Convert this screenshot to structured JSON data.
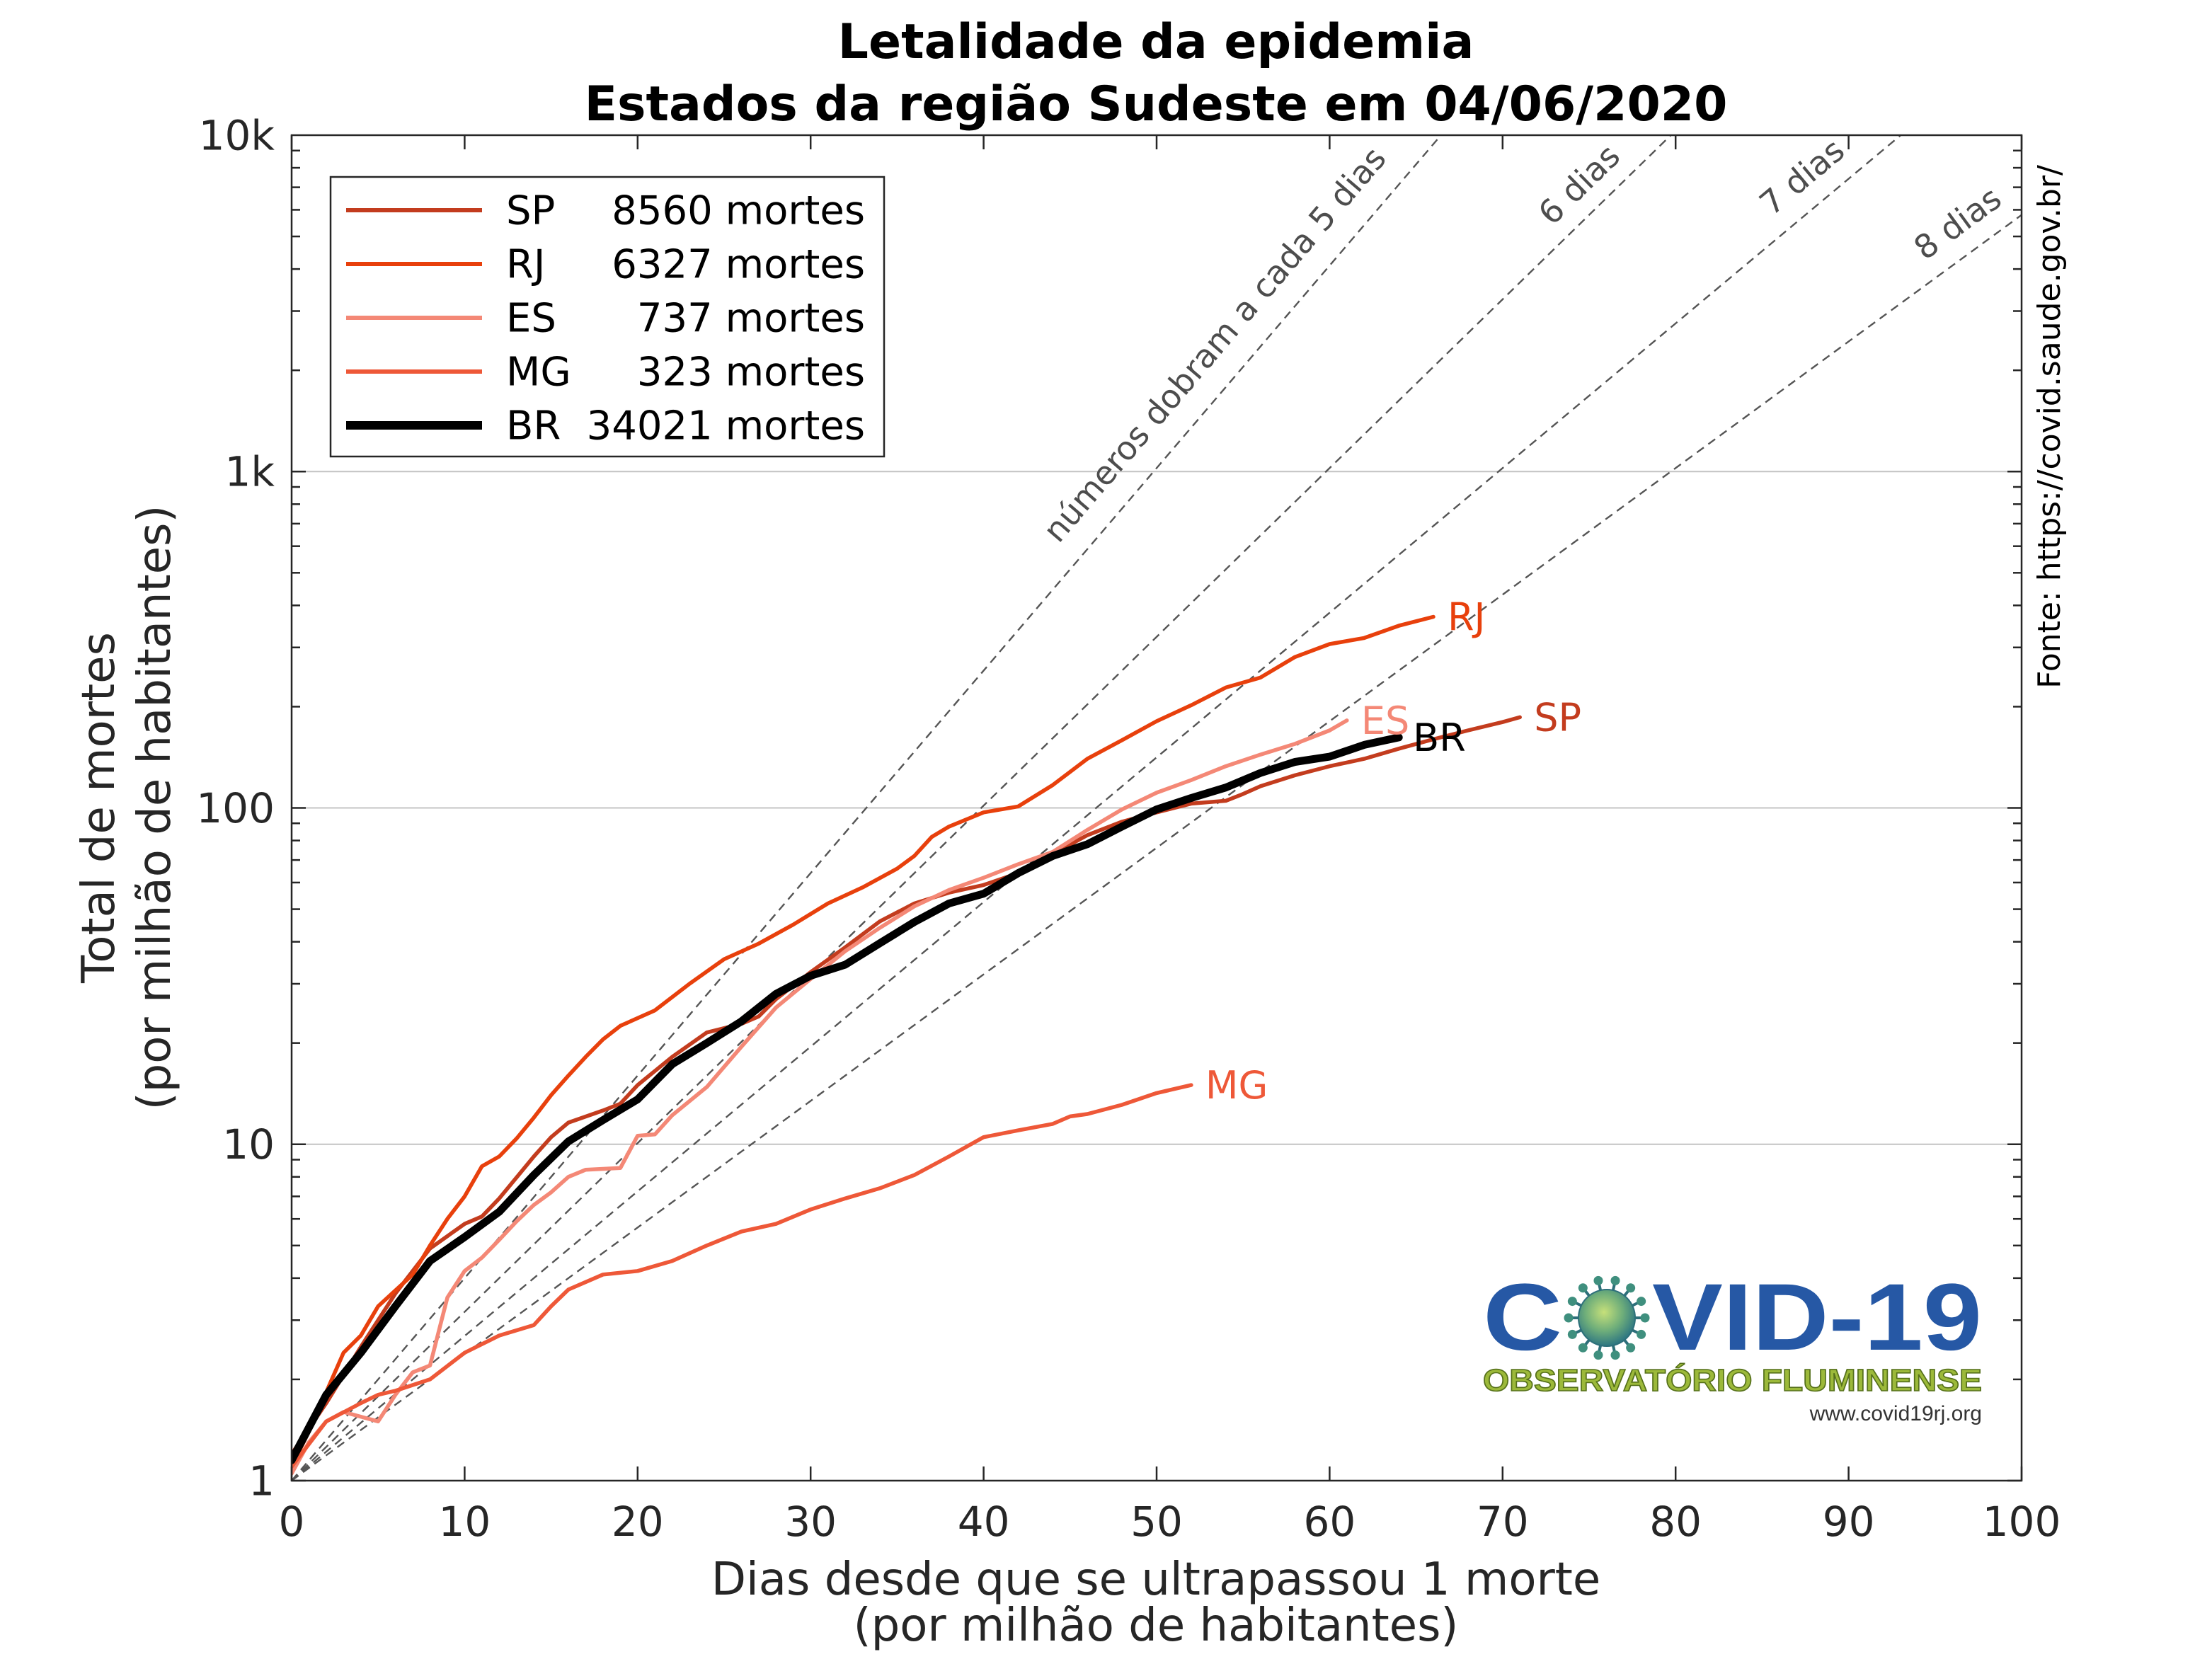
{
  "chart_data": {
    "type": "line",
    "title": "Letalidade da epidemia",
    "subtitle": "Estados da região Sudeste em 04/06/2020",
    "xlabel": "Dias desde que se ultrapassou 1 morte",
    "xlabel_line2": "(por milhão de habitantes)",
    "ylabel": "Total de mortes",
    "ylabel_line2": "(por milhão de habitantes)",
    "xlim": [
      0,
      100
    ],
    "ylim": [
      1,
      10000
    ],
    "yscale": "log",
    "xticks": [
      0,
      10,
      20,
      30,
      40,
      50,
      60,
      70,
      80,
      90,
      100
    ],
    "xtick_labels": [
      "0",
      "10",
      "20",
      "30",
      "40",
      "50",
      "60",
      "70",
      "80",
      "90",
      "100"
    ],
    "yticks": [
      1,
      10,
      100,
      1000,
      10000
    ],
    "ytick_labels": [
      "1",
      "10",
      "100",
      "1k",
      "10k"
    ],
    "grid": "y-major",
    "legend_placement": "top-left",
    "source": "Fonte: https://covid.saude.gov.br/",
    "series": [
      {
        "name": "SP",
        "legend_label": "8560 mortes",
        "color": "#c33c1e",
        "x": [
          0,
          2,
          4,
          6,
          8,
          10,
          11,
          12,
          14,
          15,
          16,
          18,
          19,
          20,
          22,
          24,
          26,
          27,
          28,
          30,
          32,
          34,
          36,
          38,
          40,
          42,
          44,
          46,
          48,
          50,
          52,
          54,
          55,
          56,
          58,
          60,
          62,
          64,
          66,
          68,
          70,
          71
        ],
        "y": [
          1.2,
          1.7,
          2.5,
          3.6,
          4.9,
          5.8,
          6.1,
          6.9,
          9.2,
          10.5,
          11.6,
          12.6,
          13.2,
          15,
          18.2,
          21.5,
          22.8,
          24,
          27,
          32.5,
          38.5,
          46,
          52,
          56,
          59,
          64,
          73,
          83,
          91,
          97,
          103,
          105,
          110,
          116,
          125,
          133,
          140,
          150,
          160,
          170,
          180,
          186
        ]
      },
      {
        "name": "RJ",
        "legend_label": "6327 mortes",
        "color": "#e8400c",
        "x": [
          0,
          1,
          3,
          4,
          5,
          7,
          8,
          9,
          10,
          11,
          12,
          13,
          14,
          15,
          16,
          17,
          18,
          19,
          21,
          23,
          25,
          27,
          29,
          31,
          33,
          35,
          36,
          37,
          38,
          40,
          42,
          44,
          46,
          48,
          50,
          52,
          54,
          56,
          58,
          60,
          62,
          64,
          66
        ],
        "y": [
          1.1,
          1.4,
          2.4,
          2.7,
          3.3,
          4.1,
          5.0,
          6.0,
          7.0,
          8.6,
          9.2,
          10.4,
          12,
          14,
          16,
          18.2,
          20.5,
          22.5,
          25,
          30,
          35.5,
          39.5,
          45,
          52,
          58,
          66,
          72,
          82,
          88,
          97,
          101,
          117,
          140,
          159,
          181,
          202,
          228,
          244,
          281,
          307,
          320,
          348,
          370
        ]
      },
      {
        "name": "ES",
        "legend_label": "737 mortes",
        "color": "#f48876",
        "x": [
          0,
          1,
          2,
          3,
          5,
          6,
          7,
          8,
          9,
          10,
          11,
          12,
          13,
          14,
          15,
          16,
          17,
          19,
          20,
          21,
          22,
          24,
          26,
          28,
          30,
          32,
          34,
          36,
          38,
          40,
          42,
          44,
          46,
          48,
          50,
          52,
          54,
          56,
          58,
          60,
          61
        ],
        "y": [
          1.05,
          1.3,
          1.5,
          1.6,
          1.5,
          1.8,
          2.1,
          2.2,
          3.5,
          4.2,
          4.6,
          5.2,
          5.9,
          6.6,
          7.2,
          8.0,
          8.4,
          8.5,
          10.6,
          10.7,
          12.2,
          14.8,
          19.5,
          25.5,
          31,
          37.5,
          44,
          51,
          57,
          62,
          68,
          74,
          86,
          99,
          111,
          121,
          133,
          144,
          155,
          170,
          182
        ]
      },
      {
        "name": "MG",
        "legend_label": "323 mortes",
        "color": "#ee5838",
        "x": [
          0,
          2,
          4,
          5,
          6,
          8,
          10,
          12,
          14,
          15,
          16,
          18,
          20,
          22,
          24,
          26,
          28,
          30,
          32,
          34,
          36,
          38,
          40,
          42,
          44,
          45,
          46,
          48,
          50,
          52
        ],
        "y": [
          1.1,
          1.5,
          1.7,
          1.8,
          1.85,
          2.0,
          2.4,
          2.7,
          2.9,
          3.3,
          3.7,
          4.1,
          4.2,
          4.5,
          5.0,
          5.5,
          5.8,
          6.4,
          6.9,
          7.4,
          8.1,
          9.2,
          10.5,
          11,
          11.5,
          12.1,
          12.3,
          13.1,
          14.2,
          15
        ]
      },
      {
        "name": "BR",
        "legend_label": "34021 mortes",
        "color": "#000000",
        "x": [
          0,
          2,
          4,
          6,
          8,
          10,
          12,
          14,
          16,
          18,
          20,
          22,
          24,
          26,
          28,
          30,
          32,
          34,
          36,
          38,
          40,
          42,
          44,
          46,
          48,
          50,
          52,
          54,
          56,
          58,
          60,
          62,
          64
        ],
        "y": [
          1.15,
          1.8,
          2.4,
          3.3,
          4.5,
          5.3,
          6.3,
          8.1,
          10.2,
          11.8,
          13.6,
          17.3,
          20,
          23.2,
          28,
          31.7,
          34.2,
          39.6,
          45.8,
          52,
          55.6,
          64,
          72,
          78,
          88,
          99,
          107,
          115,
          127,
          137,
          142,
          154,
          162
        ]
      }
    ],
    "reference_lines": [
      {
        "doubling_days": 5,
        "origin": [
          0,
          1
        ],
        "label": "números dobram a cada 5 dias",
        "style": "dashed",
        "color": "#555555"
      },
      {
        "doubling_days": 6,
        "origin": [
          0,
          1
        ],
        "label": "6 dias",
        "style": "dashed",
        "color": "#555555"
      },
      {
        "doubling_days": 7,
        "origin": [
          0,
          1
        ],
        "label": "7 dias",
        "style": "dashed",
        "color": "#555555"
      },
      {
        "doubling_days": 8,
        "origin": [
          0,
          1
        ],
        "label": "8 dias",
        "style": "dashed",
        "color": "#555555"
      }
    ]
  },
  "logo": {
    "wordmark": "COVID-19",
    "subtitle": "OBSERVATÓRIO FLUMINENSE",
    "url": "www.covid19rj.org",
    "icon": "coronavirus-icon",
    "colors": {
      "wordmark": "#2658a5",
      "subtitle": "#9cb93a"
    }
  }
}
